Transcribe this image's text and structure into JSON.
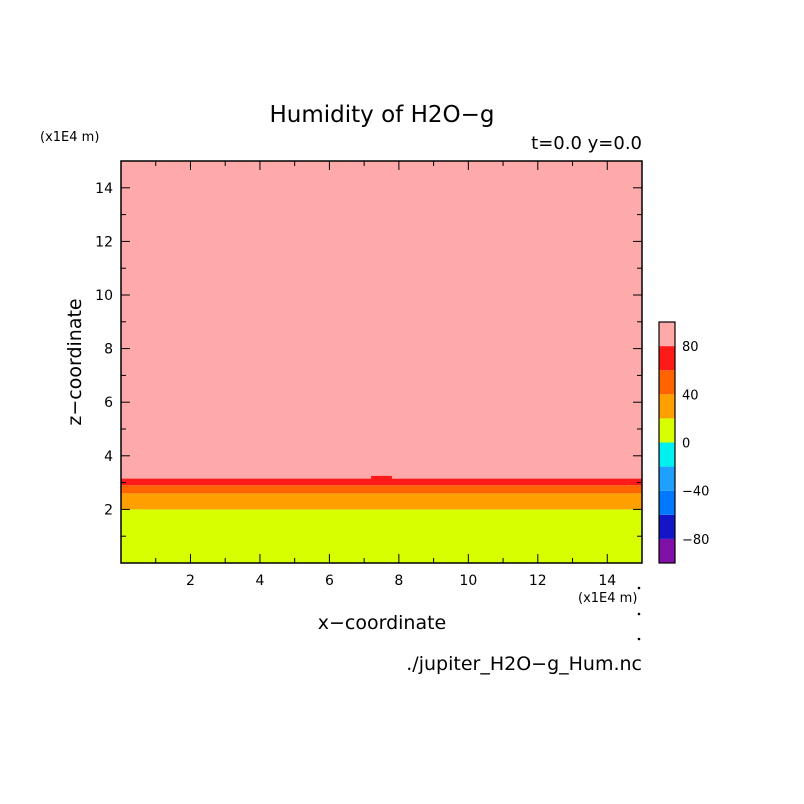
{
  "chart_data": {
    "type": "heatmap",
    "title": "Humidity of H2O−g",
    "subtitle": "t=0.0 y=0.0",
    "xlabel": "x−coordinate",
    "ylabel": "z−coordinate",
    "x_unit": "(x1E4 m)",
    "y_unit": "(x1E4 m)",
    "source_file": "./jupiter_H2O−g_Hum.nc",
    "xlim": [
      0,
      15
    ],
    "ylim": [
      0,
      15
    ],
    "xticks": [
      2,
      4,
      6,
      8,
      10,
      12,
      14
    ],
    "yticks": [
      2,
      4,
      6,
      8,
      10,
      12,
      14
    ],
    "grid": false,
    "colorbar": {
      "levels": [
        -100,
        -80,
        -60,
        -40,
        -20,
        0,
        20,
        40,
        60,
        80,
        100
      ],
      "colors": [
        "#7f10a8",
        "#1515c8",
        "#0078ff",
        "#1ea0ff",
        "#00f0f0",
        "#d8ff00",
        "#ffa000",
        "#ff6400",
        "#ff1a1a",
        "#ffaaaa"
      ],
      "tick_labels": [
        "−80",
        "−40",
        "0",
        "40",
        "80"
      ],
      "tick_values": [
        -80,
        -40,
        0,
        40,
        80
      ]
    },
    "bands": [
      {
        "z_from": 0.0,
        "z_to": 2.0,
        "value_range": [
          0,
          20
        ],
        "color": "#d8ff00"
      },
      {
        "z_from": 2.0,
        "z_to": 2.6,
        "value_range": [
          20,
          40
        ],
        "color": "#ffa000"
      },
      {
        "z_from": 2.6,
        "z_to": 2.9,
        "value_range": [
          40,
          60
        ],
        "color": "#ff6400"
      },
      {
        "z_from": 2.9,
        "z_to": 3.15,
        "value_range": [
          60,
          80
        ],
        "color": "#ff1a1a"
      },
      {
        "z_from": 3.15,
        "z_to": 15.0,
        "value_range": [
          80,
          100
        ],
        "color": "#ffaaaa"
      }
    ],
    "bump": {
      "x_from": 7.2,
      "x_to": 7.8,
      "z_top": 3.25,
      "color": "#ff1a1a"
    }
  }
}
